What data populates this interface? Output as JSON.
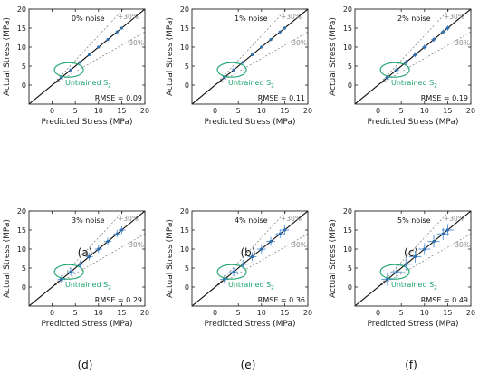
{
  "figure": {
    "panel_labels": [
      "(a)",
      "(b)",
      "(c)",
      "(d)",
      "(e)",
      "(f)"
    ]
  },
  "colors": {
    "points": "#2f6ea8",
    "error_bars": "#4a90d9",
    "ellipse": "#1aa36b",
    "identity_line": "#111111",
    "band_lines": "#8a8a8a"
  },
  "chart_data": [
    {
      "type": "scatter",
      "panel": "(a)",
      "noise_label": "0% noise",
      "rmse_label": "RMSE = 0.09",
      "xlabel": "Predicted Stress (MPa)",
      "ylabel": "Actual Stress (MPa)",
      "xlim": [
        -5,
        20
      ],
      "ylim": [
        -5,
        20
      ],
      "xticks": [
        0,
        5,
        10,
        15,
        20
      ],
      "yticks": [
        0,
        5,
        10,
        15,
        20
      ],
      "band_labels": [
        "+30%",
        "−30%"
      ],
      "untrained_label": "Untrained S",
      "untrained_subscript": "2",
      "untrained_center": [
        4,
        4
      ],
      "points": [
        {
          "x": 2,
          "y": 2,
          "err": 0.05
        },
        {
          "x": 4,
          "y": 4,
          "err": 0.05
        },
        {
          "x": 6,
          "y": 6,
          "err": 0.05
        },
        {
          "x": 8,
          "y": 8,
          "err": 0.05
        },
        {
          "x": 10,
          "y": 10,
          "err": 0.05
        },
        {
          "x": 12,
          "y": 12,
          "err": 0.05
        },
        {
          "x": 14,
          "y": 14,
          "err": 0.05
        },
        {
          "x": 15,
          "y": 15,
          "err": 0.05
        }
      ]
    },
    {
      "type": "scatter",
      "panel": "(b)",
      "noise_label": "1% noise",
      "rmse_label": "RMSE = 0.11",
      "xlabel": "Predicted Stress (MPa)",
      "ylabel": "Actual Stress (MPa)",
      "xlim": [
        -5,
        20
      ],
      "ylim": [
        -5,
        20
      ],
      "xticks": [
        0,
        5,
        10,
        15,
        20
      ],
      "yticks": [
        0,
        5,
        10,
        15,
        20
      ],
      "band_labels": [
        "+30%",
        "−30%"
      ],
      "untrained_label": "Untrained S",
      "untrained_subscript": "2",
      "untrained_center": [
        4,
        4
      ],
      "points": [
        {
          "x": 2,
          "y": 2,
          "err": 0.2
        },
        {
          "x": 4,
          "y": 4,
          "err": 0.2
        },
        {
          "x": 6,
          "y": 6,
          "err": 0.2
        },
        {
          "x": 8,
          "y": 8,
          "err": 0.2
        },
        {
          "x": 10,
          "y": 10,
          "err": 0.2
        },
        {
          "x": 12,
          "y": 12,
          "err": 0.2
        },
        {
          "x": 14,
          "y": 14,
          "err": 0.2
        },
        {
          "x": 15,
          "y": 15,
          "err": 0.2
        }
      ]
    },
    {
      "type": "scatter",
      "panel": "(c)",
      "noise_label": "2% noise",
      "rmse_label": "RMSE = 0.19",
      "xlabel": "Predicted Stress (MPa)",
      "ylabel": "Actual Stress (MPa)",
      "xlim": [
        -5,
        20
      ],
      "ylim": [
        -5,
        20
      ],
      "xticks": [
        0,
        5,
        10,
        15,
        20
      ],
      "yticks": [
        0,
        5,
        10,
        15,
        20
      ],
      "band_labels": [
        "+30%",
        "−30%"
      ],
      "untrained_label": "Untrained S",
      "untrained_subscript": "2",
      "untrained_center": [
        4,
        4
      ],
      "points": [
        {
          "x": 2,
          "y": 2,
          "err": 0.35
        },
        {
          "x": 4,
          "y": 4,
          "err": 0.35
        },
        {
          "x": 6,
          "y": 6,
          "err": 0.35
        },
        {
          "x": 8,
          "y": 8,
          "err": 0.35
        },
        {
          "x": 10,
          "y": 10,
          "err": 0.35
        },
        {
          "x": 12,
          "y": 12,
          "err": 0.35
        },
        {
          "x": 14,
          "y": 14,
          "err": 0.35
        },
        {
          "x": 15,
          "y": 15,
          "err": 0.35
        }
      ]
    },
    {
      "type": "scatter",
      "panel": "(d)",
      "noise_label": "3% noise",
      "rmse_label": "RMSE = 0.29",
      "xlabel": "Predicted Stress (MPa)",
      "ylabel": "Actual Stress (MPa)",
      "xlim": [
        -5,
        20
      ],
      "ylim": [
        -5,
        20
      ],
      "xticks": [
        0,
        5,
        10,
        15,
        20
      ],
      "yticks": [
        0,
        5,
        10,
        15,
        20
      ],
      "band_labels": [
        "+30%",
        "−30%"
      ],
      "untrained_label": "Untrained S",
      "untrained_subscript": "2",
      "untrained_center": [
        4,
        4
      ],
      "points": [
        {
          "x": 2,
          "y": 2,
          "err": 0.5
        },
        {
          "x": 4,
          "y": 4,
          "err": 0.5
        },
        {
          "x": 6,
          "y": 6,
          "err": 0.5
        },
        {
          "x": 8,
          "y": 8,
          "err": 0.5
        },
        {
          "x": 10,
          "y": 10,
          "err": 0.5
        },
        {
          "x": 12,
          "y": 12,
          "err": 0.5
        },
        {
          "x": 14,
          "y": 14,
          "err": 0.5
        },
        {
          "x": 15,
          "y": 15,
          "err": 0.5
        }
      ]
    },
    {
      "type": "scatter",
      "panel": "(e)",
      "noise_label": "4% noise",
      "rmse_label": "RMSE = 0.36",
      "xlabel": "Predicted Stress (MPa)",
      "ylabel": "Actual Stress (MPa)",
      "xlim": [
        -5,
        20
      ],
      "ylim": [
        -5,
        20
      ],
      "xticks": [
        0,
        5,
        10,
        15,
        20
      ],
      "yticks": [
        0,
        5,
        10,
        15,
        20
      ],
      "band_labels": [
        "+30%",
        "−30%"
      ],
      "untrained_label": "Untrained S",
      "untrained_subscript": "2",
      "untrained_center": [
        4,
        4
      ],
      "points": [
        {
          "x": 2,
          "y": 2,
          "err": 0.6
        },
        {
          "x": 4,
          "y": 4,
          "err": 0.6
        },
        {
          "x": 6,
          "y": 6,
          "err": 0.6
        },
        {
          "x": 8,
          "y": 8,
          "err": 0.6
        },
        {
          "x": 10,
          "y": 10,
          "err": 0.6
        },
        {
          "x": 12,
          "y": 12,
          "err": 0.6
        },
        {
          "x": 14,
          "y": 14,
          "err": 0.6
        },
        {
          "x": 15,
          "y": 15,
          "err": 0.6
        }
      ]
    },
    {
      "type": "scatter",
      "panel": "(f)",
      "noise_label": "5% noise",
      "rmse_label": "RMSE = 0.49",
      "xlabel": "Predicted Stress (MPa)",
      "ylabel": "Actual Stress (MPa)",
      "xlim": [
        -5,
        20
      ],
      "ylim": [
        -5,
        20
      ],
      "xticks": [
        0,
        5,
        10,
        15,
        20
      ],
      "yticks": [
        0,
        5,
        10,
        15,
        20
      ],
      "band_labels": [
        "+30%",
        "−30%"
      ],
      "untrained_label": "Untrained S",
      "untrained_subscript": "2",
      "untrained_center": [
        4,
        4
      ],
      "points": [
        {
          "x": 2,
          "y": 2,
          "err": 0.8
        },
        {
          "x": 4,
          "y": 4,
          "err": 0.8
        },
        {
          "x": 6,
          "y": 6,
          "err": 0.8
        },
        {
          "x": 8,
          "y": 8,
          "err": 0.8
        },
        {
          "x": 10,
          "y": 10,
          "err": 0.8
        },
        {
          "x": 12,
          "y": 12,
          "err": 0.8
        },
        {
          "x": 14,
          "y": 14,
          "err": 0.8
        },
        {
          "x": 15,
          "y": 15,
          "err": 0.8
        }
      ]
    }
  ]
}
